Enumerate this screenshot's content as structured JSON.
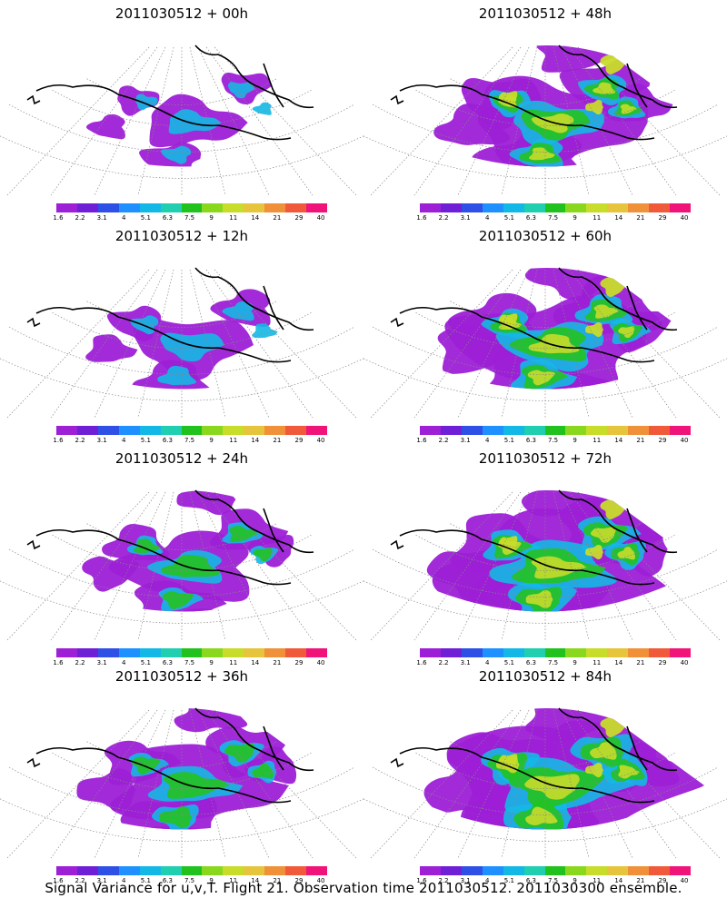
{
  "colorbar": {
    "labels": [
      "1.6",
      "2.2",
      "3.1",
      "4",
      "5.1",
      "6.3",
      "7.5",
      "9",
      "11",
      "14",
      "21",
      "29",
      "40"
    ],
    "colors": [
      "#9d1fd6",
      "#6f1fd6",
      "#2f50e6",
      "#1e90ff",
      "#14b8e6",
      "#1fcfb0",
      "#22c21e",
      "#8ad81e",
      "#c8dc2a",
      "#e6c43c",
      "#f0913a",
      "#f05a3a",
      "#f0147a"
    ]
  },
  "panels": [
    {
      "title": "2011030512 + 00h",
      "level": 0
    },
    {
      "title": "2011030512 + 48h",
      "level": 4
    },
    {
      "title": "2011030512 + 12h",
      "level": 1
    },
    {
      "title": "2011030512 + 60h",
      "level": 5
    },
    {
      "title": "2011030512 + 24h",
      "level": 2
    },
    {
      "title": "2011030512 + 72h",
      "level": 6
    },
    {
      "title": "2011030512 + 36h",
      "level": 3
    },
    {
      "title": "2011030512 + 84h",
      "level": 7
    }
  ],
  "caption": "Signal Variance for u,v,T. Flight 21. Observation time 2011030512. 2011030300 ensemble."
}
